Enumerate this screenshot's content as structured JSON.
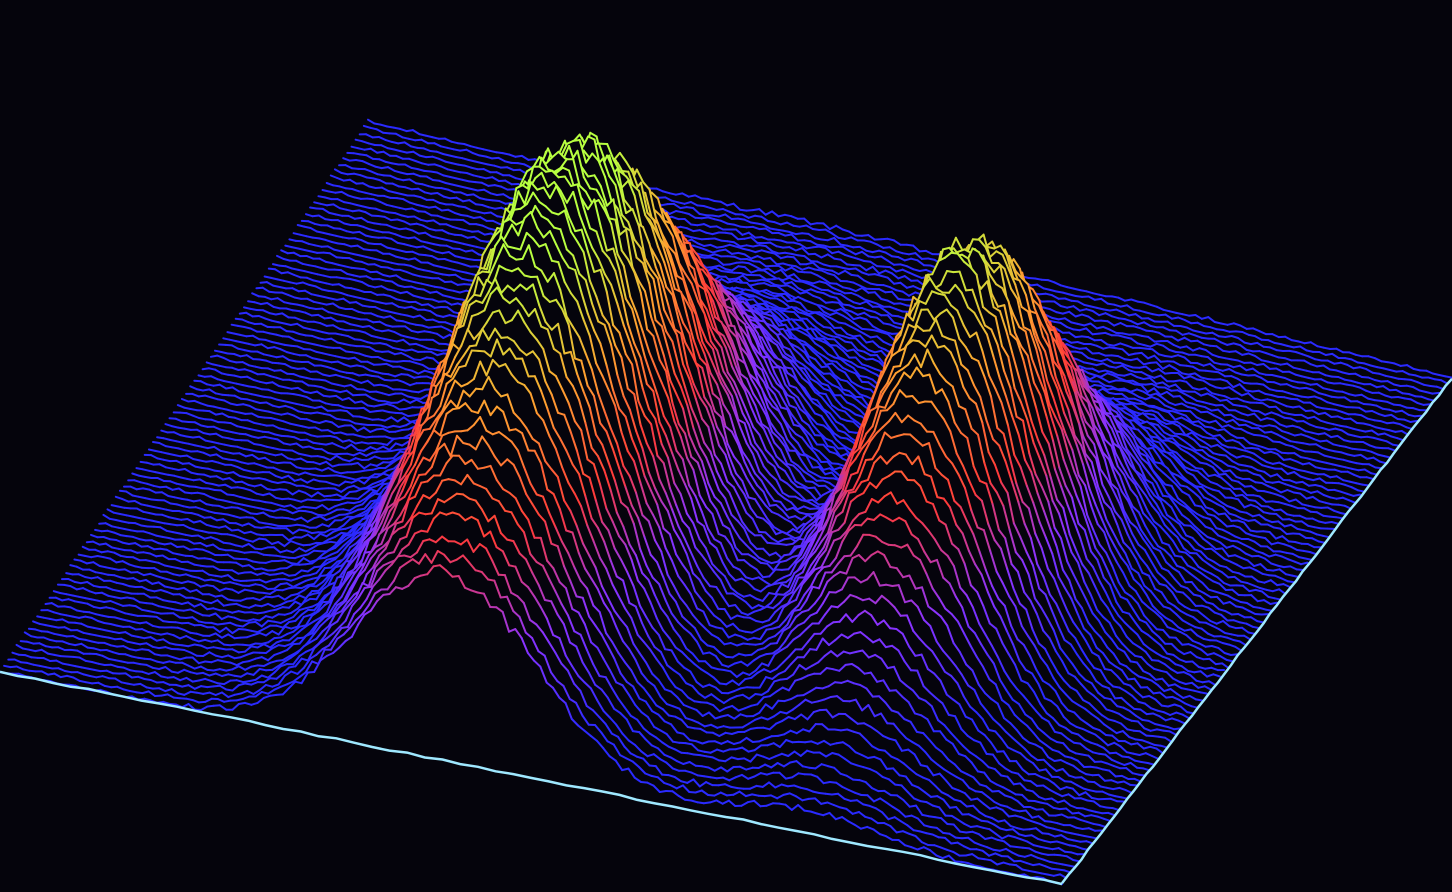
{
  "chart_data": {
    "type": "surface",
    "render_style": "stacked-profile-wireframe",
    "title": "",
    "xlabel": "",
    "ylabel": "",
    "zlabel": "",
    "grid": false,
    "legend": "none",
    "n_profiles": 90,
    "n_samples_per_profile": 170,
    "x_range": [
      0,
      1
    ],
    "y_range": [
      0,
      1
    ],
    "z_range": [
      0,
      1
    ],
    "peaks": [
      {
        "name": "",
        "x": 0.42,
        "y": 0.3,
        "height": 1.0,
        "sigma_x": 0.085,
        "sigma_y": 0.23
      },
      {
        "name": "",
        "x": 0.76,
        "y": 0.4,
        "height": 0.85,
        "sigma_x": 0.07,
        "sigma_y": 0.17
      }
    ],
    "noise_amplitude": 0.03,
    "colormap": {
      "low": "#2a2aff",
      "low_mid": "#8a33ff",
      "mid": "#ff3a3a",
      "mid_high": "#ffa030",
      "high": "#b8ff40"
    },
    "edge_color": "#9fe8ff",
    "background": "#05040c"
  }
}
